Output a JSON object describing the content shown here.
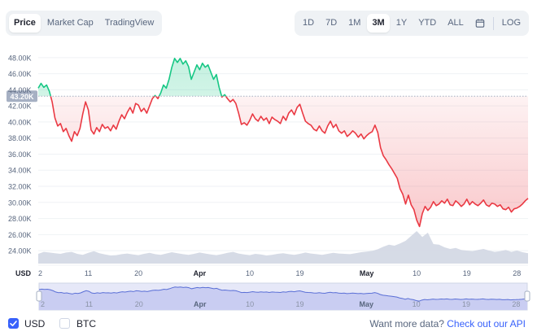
{
  "tabs": [
    {
      "label": "Price",
      "active": true
    },
    {
      "label": "Market Cap",
      "active": false
    },
    {
      "label": "TradingView",
      "active": false
    }
  ],
  "ranges": [
    {
      "label": "1D",
      "active": false
    },
    {
      "label": "7D",
      "active": false
    },
    {
      "label": "1M",
      "active": false
    },
    {
      "label": "3M",
      "active": true
    },
    {
      "label": "1Y",
      "active": false
    },
    {
      "label": "YTD",
      "active": false
    },
    {
      "label": "ALL",
      "active": false
    }
  ],
  "log_label": "LOG",
  "calendar_icon": "calendar-icon",
  "footer": {
    "usd_label": "USD",
    "btc_label": "BTC",
    "usd_checked": true,
    "btc_checked": false,
    "more_text": "Want more data?",
    "api_link": "Check out our API"
  },
  "colors": {
    "up": "#16c784",
    "down": "#ea3943",
    "accent": "#3861fb"
  },
  "chart_data": {
    "type": "line",
    "y_axis_unit_label": "USD",
    "current_price_label": "43.20K",
    "reference_value": 43200,
    "ylim": [
      23000,
      49500
    ],
    "yticks": [
      {
        "value": 24000,
        "label": "24.00K"
      },
      {
        "value": 26000,
        "label": "26.00K"
      },
      {
        "value": 28000,
        "label": "28.00K"
      },
      {
        "value": 30000,
        "label": "30.00K"
      },
      {
        "value": 32000,
        "label": "32.00K"
      },
      {
        "value": 34000,
        "label": "34.00K"
      },
      {
        "value": 36000,
        "label": "36.00K"
      },
      {
        "value": 38000,
        "label": "38.00K"
      },
      {
        "value": 40000,
        "label": "40.00K"
      },
      {
        "value": 42000,
        "label": "42.00K"
      },
      {
        "value": 44000,
        "label": "44.00K"
      },
      {
        "value": 46000,
        "label": "46.00K"
      },
      {
        "value": 48000,
        "label": "48.00K"
      }
    ],
    "xticks": [
      {
        "day": 0,
        "label": "2",
        "bold": false
      },
      {
        "day": 9,
        "label": "11",
        "bold": false
      },
      {
        "day": 18,
        "label": "20",
        "bold": false
      },
      {
        "day": 29,
        "label": "Apr",
        "bold": true
      },
      {
        "day": 38,
        "label": "10",
        "bold": false
      },
      {
        "day": 47,
        "label": "19",
        "bold": false
      },
      {
        "day": 59,
        "label": "May",
        "bold": true
      },
      {
        "day": 68,
        "label": "10",
        "bold": false
      },
      {
        "day": 77,
        "label": "19",
        "bold": false
      },
      {
        "day": 86,
        "label": "28",
        "bold": false
      }
    ],
    "x_range": [
      0,
      88
    ],
    "price": [
      [
        0,
        44200
      ],
      [
        0.5,
        44800
      ],
      [
        1,
        44300
      ],
      [
        1.5,
        44600
      ],
      [
        2,
        43800
      ],
      [
        2.5,
        42500
      ],
      [
        3,
        40500
      ],
      [
        3.5,
        39500
      ],
      [
        4,
        39800
      ],
      [
        4.5,
        38800
      ],
      [
        5,
        39200
      ],
      [
        5.5,
        38300
      ],
      [
        6,
        37600
      ],
      [
        6.5,
        38800
      ],
      [
        7,
        38300
      ],
      [
        7.5,
        39200
      ],
      [
        8,
        41000
      ],
      [
        8.5,
        42500
      ],
      [
        9,
        41500
      ],
      [
        9.5,
        39000
      ],
      [
        10,
        38500
      ],
      [
        10.5,
        39300
      ],
      [
        11,
        38800
      ],
      [
        11.5,
        39700
      ],
      [
        12,
        39200
      ],
      [
        12.5,
        39400
      ],
      [
        13,
        38900
      ],
      [
        13.5,
        39600
      ],
      [
        14,
        39100
      ],
      [
        14.5,
        40100
      ],
      [
        15,
        40900
      ],
      [
        15.5,
        40400
      ],
      [
        16,
        41200
      ],
      [
        16.5,
        41800
      ],
      [
        17,
        41100
      ],
      [
        17.5,
        42300
      ],
      [
        18,
        42100
      ],
      [
        18.5,
        41300
      ],
      [
        19,
        41700
      ],
      [
        19.5,
        41100
      ],
      [
        20,
        42000
      ],
      [
        20.5,
        42900
      ],
      [
        21,
        43300
      ],
      [
        21.5,
        42900
      ],
      [
        22,
        43600
      ],
      [
        22.5,
        44600
      ],
      [
        23,
        44200
      ],
      [
        23.5,
        45300
      ],
      [
        24,
        46800
      ],
      [
        24.5,
        47900
      ],
      [
        25,
        47400
      ],
      [
        25.5,
        47900
      ],
      [
        26,
        47200
      ],
      [
        26.5,
        47600
      ],
      [
        27,
        46900
      ],
      [
        27.5,
        45300
      ],
      [
        28,
        46200
      ],
      [
        28.5,
        47100
      ],
      [
        29,
        46500
      ],
      [
        29.5,
        47300
      ],
      [
        30,
        46800
      ],
      [
        30.5,
        47100
      ],
      [
        31,
        46200
      ],
      [
        31.5,
        45300
      ],
      [
        32,
        45900
      ],
      [
        32.5,
        44300
      ],
      [
        33,
        43100
      ],
      [
        33.5,
        43400
      ],
      [
        34,
        42900
      ],
      [
        34.5,
        42500
      ],
      [
        35,
        42800
      ],
      [
        35.5,
        42300
      ],
      [
        36,
        41100
      ],
      [
        36.5,
        39700
      ],
      [
        37,
        39900
      ],
      [
        37.5,
        39600
      ],
      [
        38,
        40200
      ],
      [
        38.5,
        41000
      ],
      [
        39,
        40400
      ],
      [
        39.5,
        40100
      ],
      [
        40,
        40700
      ],
      [
        40.5,
        40200
      ],
      [
        41,
        40500
      ],
      [
        41.5,
        39800
      ],
      [
        42,
        40600
      ],
      [
        42.5,
        40300
      ],
      [
        43,
        40100
      ],
      [
        43.5,
        39800
      ],
      [
        44,
        40700
      ],
      [
        44.5,
        40200
      ],
      [
        45,
        41100
      ],
      [
        45.5,
        41500
      ],
      [
        46,
        40900
      ],
      [
        46.5,
        41800
      ],
      [
        47,
        42200
      ],
      [
        47.5,
        41100
      ],
      [
        48,
        40100
      ],
      [
        48.5,
        39800
      ],
      [
        49,
        39600
      ],
      [
        49.5,
        39100
      ],
      [
        50,
        38900
      ],
      [
        50.5,
        39500
      ],
      [
        51,
        38900
      ],
      [
        51.5,
        38600
      ],
      [
        52,
        39500
      ],
      [
        52.5,
        40100
      ],
      [
        53,
        39300
      ],
      [
        53.5,
        39700
      ],
      [
        54,
        38900
      ],
      [
        54.5,
        38600
      ],
      [
        55,
        38900
      ],
      [
        55.5,
        38200
      ],
      [
        56,
        38500
      ],
      [
        56.5,
        38900
      ],
      [
        57,
        38600
      ],
      [
        57.5,
        38100
      ],
      [
        58,
        38500
      ],
      [
        58.5,
        37900
      ],
      [
        59,
        38300
      ],
      [
        59.5,
        38600
      ],
      [
        60,
        38800
      ],
      [
        60.5,
        39600
      ],
      [
        61,
        38700
      ],
      [
        61.5,
        36800
      ],
      [
        62,
        35800
      ],
      [
        62.5,
        35300
      ],
      [
        63,
        34700
      ],
      [
        63.5,
        34200
      ],
      [
        64,
        33600
      ],
      [
        64.5,
        33000
      ],
      [
        65,
        31700
      ],
      [
        65.5,
        31000
      ],
      [
        66,
        29800
      ],
      [
        66.5,
        30900
      ],
      [
        67,
        29700
      ],
      [
        67.5,
        29100
      ],
      [
        68,
        27800
      ],
      [
        68.5,
        27000
      ],
      [
        69,
        28600
      ],
      [
        69.5,
        29500
      ],
      [
        70,
        29000
      ],
      [
        70.5,
        29400
      ],
      [
        71,
        30100
      ],
      [
        71.5,
        29600
      ],
      [
        72,
        29800
      ],
      [
        72.5,
        30200
      ],
      [
        73,
        29900
      ],
      [
        73.5,
        30400
      ],
      [
        74,
        29700
      ],
      [
        74.5,
        29600
      ],
      [
        75,
        30200
      ],
      [
        75.5,
        29900
      ],
      [
        76,
        29500
      ],
      [
        76.5,
        29800
      ],
      [
        77,
        30400
      ],
      [
        77.5,
        29700
      ],
      [
        78,
        30100
      ],
      [
        78.5,
        29800
      ],
      [
        79,
        29600
      ],
      [
        79.5,
        29900
      ],
      [
        80,
        30300
      ],
      [
        80.5,
        29700
      ],
      [
        81,
        29500
      ],
      [
        81.5,
        29900
      ],
      [
        82,
        29800
      ],
      [
        82.5,
        29500
      ],
      [
        83,
        29700
      ],
      [
        83.5,
        29200
      ],
      [
        84,
        29100
      ],
      [
        84.5,
        29400
      ],
      [
        85,
        28800
      ],
      [
        85.5,
        29200
      ],
      [
        86,
        29300
      ],
      [
        86.5,
        29500
      ],
      [
        87,
        29800
      ],
      [
        87.5,
        30200
      ],
      [
        88,
        30500
      ]
    ],
    "volume_relative": [
      0.3,
      0.36,
      0.34,
      0.32,
      0.3,
      0.34,
      0.36,
      0.3,
      0.27,
      0.33,
      0.38,
      0.32,
      0.28,
      0.25,
      0.26,
      0.29,
      0.31,
      0.28,
      0.26,
      0.3,
      0.33,
      0.29,
      0.27,
      0.31,
      0.35,
      0.32,
      0.29,
      0.27,
      0.3,
      0.34,
      0.31,
      0.28,
      0.26,
      0.29,
      0.33,
      0.36,
      0.31,
      0.28,
      0.26,
      0.3,
      0.28,
      0.25,
      0.27,
      0.3,
      0.32,
      0.29,
      0.27,
      0.3,
      0.34,
      0.31,
      0.29,
      0.27,
      0.3,
      0.33,
      0.31,
      0.3,
      0.29,
      0.32,
      0.35,
      0.37,
      0.39,
      0.44,
      0.52,
      0.58,
      0.55,
      0.62,
      0.7,
      0.85,
      1.0,
      0.82,
      0.95,
      0.6,
      0.58,
      0.5,
      0.45,
      0.48,
      0.42,
      0.4,
      0.38,
      0.42,
      0.45,
      0.4,
      0.36,
      0.38,
      0.42,
      0.36,
      0.4,
      0.35,
      0.32
    ]
  }
}
